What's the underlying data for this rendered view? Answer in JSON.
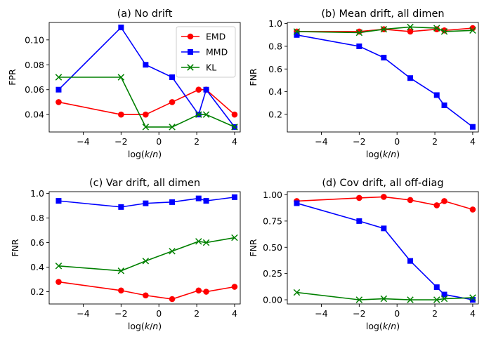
{
  "chart_data": [
    {
      "type": "line",
      "title": "(a) No drift",
      "xlabel": "log(k/n)",
      "ylabel": "FPR",
      "xlim": [
        -5.8,
        4.3
      ],
      "ylim": [
        0.026,
        0.114
      ],
      "xticks": [
        -4,
        -2,
        0,
        2,
        4
      ],
      "xtick_labels": [
        "−4",
        "−2",
        "0",
        "2",
        "4"
      ],
      "yticks": [
        0.04,
        0.06,
        0.08,
        0.1
      ],
      "ytick_labels": [
        "0.04",
        "0.06",
        "0.08",
        "0.10"
      ],
      "x": [
        -5.3,
        -2.0,
        -0.7,
        0.7,
        2.1,
        2.5,
        4.0
      ],
      "legend_position": "top-right",
      "series": [
        {
          "name": "EMD",
          "color": "#ff0000",
          "marker": "circle",
          "values": [
            0.05,
            0.04,
            0.04,
            0.05,
            0.06,
            0.06,
            0.04
          ]
        },
        {
          "name": "MMD",
          "color": "#0000ff",
          "marker": "square",
          "values": [
            0.06,
            0.11,
            0.08,
            0.07,
            0.04,
            0.06,
            0.03
          ]
        },
        {
          "name": "KL",
          "color": "#008000",
          "marker": "x",
          "values": [
            0.07,
            0.07,
            0.03,
            0.03,
            0.04,
            0.04,
            0.03
          ]
        }
      ]
    },
    {
      "type": "line",
      "title": "(b) Mean drift, all dimen",
      "xlabel": "log(k/n)",
      "ylabel": "FNR",
      "xlim": [
        -5.8,
        4.3
      ],
      "ylim": [
        0.045,
        1.01
      ],
      "xticks": [
        -4,
        -2,
        0,
        2,
        4
      ],
      "xtick_labels": [
        "−4",
        "−2",
        "0",
        "2",
        "4"
      ],
      "yticks": [
        0.2,
        0.4,
        0.6,
        0.8,
        1.0
      ],
      "ytick_labels": [
        "0.2",
        "0.4",
        "0.6",
        "0.8",
        "1.0"
      ],
      "x": [
        -5.3,
        -2.0,
        -0.7,
        0.7,
        2.1,
        2.5,
        4.0
      ],
      "series": [
        {
          "name": "EMD",
          "color": "#ff0000",
          "marker": "circle",
          "values": [
            0.93,
            0.93,
            0.95,
            0.93,
            0.95,
            0.94,
            0.96
          ]
        },
        {
          "name": "MMD",
          "color": "#0000ff",
          "marker": "square",
          "values": [
            0.9,
            0.8,
            0.7,
            0.52,
            0.37,
            0.28,
            0.09
          ]
        },
        {
          "name": "KL",
          "color": "#008000",
          "marker": "x",
          "values": [
            0.93,
            0.92,
            0.95,
            0.97,
            0.96,
            0.93,
            0.94
          ]
        }
      ]
    },
    {
      "type": "line",
      "title": "(c) Var drift, all dimen",
      "xlabel": "log(k/n)",
      "ylabel": "FNR",
      "xlim": [
        -5.8,
        4.3
      ],
      "ylim": [
        0.1,
        1.015
      ],
      "xticks": [
        -4,
        -2,
        0,
        2,
        4
      ],
      "xtick_labels": [
        "−4",
        "−2",
        "0",
        "2",
        "4"
      ],
      "yticks": [
        0.2,
        0.4,
        0.6,
        0.8,
        1.0
      ],
      "ytick_labels": [
        "0.2",
        "0.4",
        "0.6",
        "0.8",
        "1.0"
      ],
      "x": [
        -5.3,
        -2.0,
        -0.7,
        0.7,
        2.1,
        2.5,
        4.0
      ],
      "series": [
        {
          "name": "EMD",
          "color": "#ff0000",
          "marker": "circle",
          "values": [
            0.28,
            0.21,
            0.17,
            0.14,
            0.21,
            0.2,
            0.24
          ]
        },
        {
          "name": "MMD",
          "color": "#0000ff",
          "marker": "square",
          "values": [
            0.94,
            0.89,
            0.92,
            0.93,
            0.96,
            0.94,
            0.97
          ]
        },
        {
          "name": "KL",
          "color": "#008000",
          "marker": "x",
          "values": [
            0.41,
            0.37,
            0.45,
            0.53,
            0.61,
            0.6,
            0.64
          ]
        }
      ]
    },
    {
      "type": "line",
      "title": "(d) Cov drift, all off-diag",
      "xlabel": "log(k/n)",
      "ylabel": "FNR",
      "xlim": [
        -5.8,
        4.3
      ],
      "ylim": [
        -0.04,
        1.03
      ],
      "xticks": [
        -4,
        -2,
        0,
        2,
        4
      ],
      "xtick_labels": [
        "−4",
        "−2",
        "0",
        "2",
        "4"
      ],
      "yticks": [
        0.0,
        0.25,
        0.5,
        0.75,
        1.0
      ],
      "ytick_labels": [
        "0.00",
        "0.25",
        "0.50",
        "0.75",
        "1.00"
      ],
      "x": [
        -5.3,
        -2.0,
        -0.7,
        0.7,
        2.1,
        2.5,
        4.0
      ],
      "series": [
        {
          "name": "EMD",
          "color": "#ff0000",
          "marker": "circle",
          "values": [
            0.94,
            0.97,
            0.98,
            0.95,
            0.9,
            0.94,
            0.86
          ]
        },
        {
          "name": "MMD",
          "color": "#0000ff",
          "marker": "square",
          "values": [
            0.92,
            0.75,
            0.68,
            0.37,
            0.12,
            0.05,
            0.0
          ]
        },
        {
          "name": "KL",
          "color": "#008000",
          "marker": "x",
          "values": [
            0.07,
            0.0,
            0.01,
            0.0,
            0.0,
            0.01,
            0.02
          ]
        }
      ]
    }
  ]
}
